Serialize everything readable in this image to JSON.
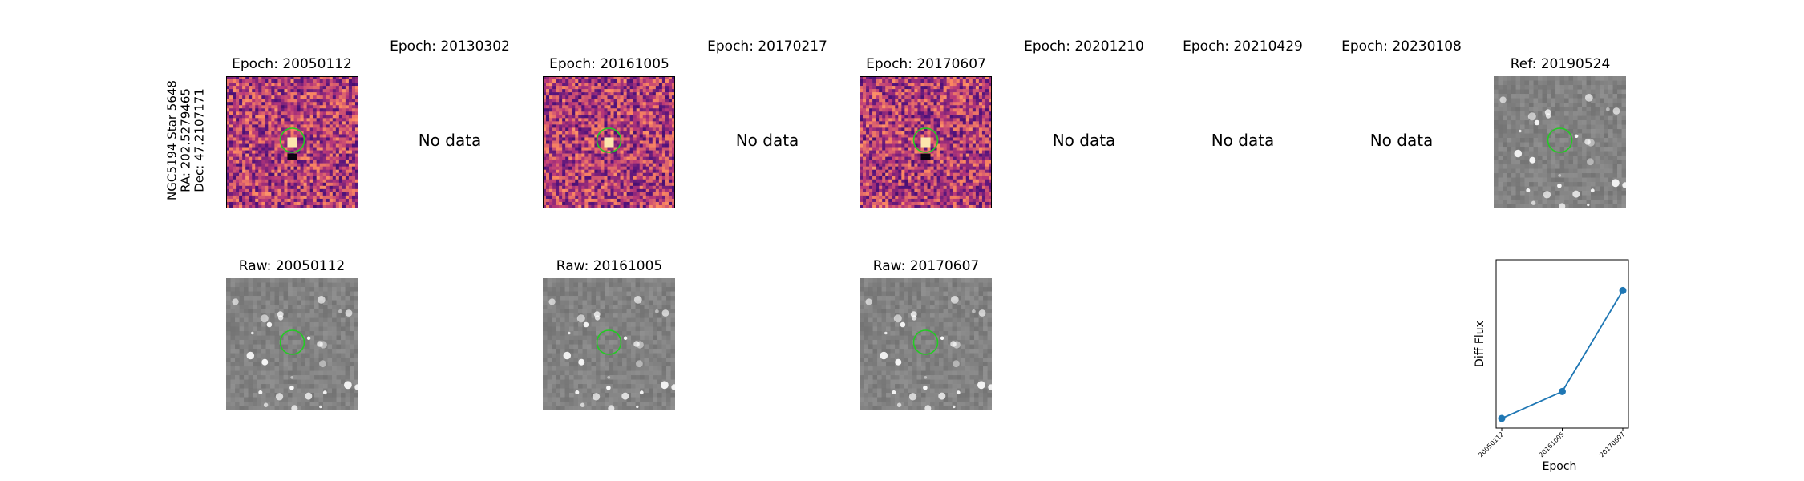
{
  "star_label": {
    "line1": "NGC5194 Star 5648",
    "line2": "RA: 202.5279465",
    "line3": "Dec: 47.2107171"
  },
  "colors": {
    "marker_circle": "#22cc22",
    "line_series": "#1f77b4"
  },
  "top_row": [
    {
      "title": "Epoch: 20050112",
      "status": "image",
      "colormap": "magma"
    },
    {
      "title": "Epoch: 20130302",
      "status": "No data"
    },
    {
      "title": "Epoch: 20161005",
      "status": "image",
      "colormap": "magma"
    },
    {
      "title": "Epoch: 20170217",
      "status": "No data"
    },
    {
      "title": "Epoch: 20170607",
      "status": "image",
      "colormap": "magma"
    },
    {
      "title": "Epoch: 20201210",
      "status": "No data"
    },
    {
      "title": "Epoch: 20210429",
      "status": "No data"
    },
    {
      "title": "Epoch: 20230108",
      "status": "No data"
    },
    {
      "title": "Ref: 20190524",
      "status": "image",
      "colormap": "gray"
    }
  ],
  "bottom_row": [
    {
      "title": "Raw: 20050112"
    },
    {
      "title": "Raw: 20161005"
    },
    {
      "title": "Raw: 20170607"
    }
  ],
  "chart_data": {
    "type": "line",
    "title": "",
    "xlabel": "Epoch",
    "ylabel": "Diff Flux",
    "categories": [
      "20050112",
      "20161005",
      "20170607"
    ],
    "series": [
      {
        "values": [
          0.05,
          0.33,
          1.38
        ]
      }
    ],
    "ylim": [
      -0.05,
      1.7
    ],
    "yticks_visible": false,
    "grid": false
  }
}
